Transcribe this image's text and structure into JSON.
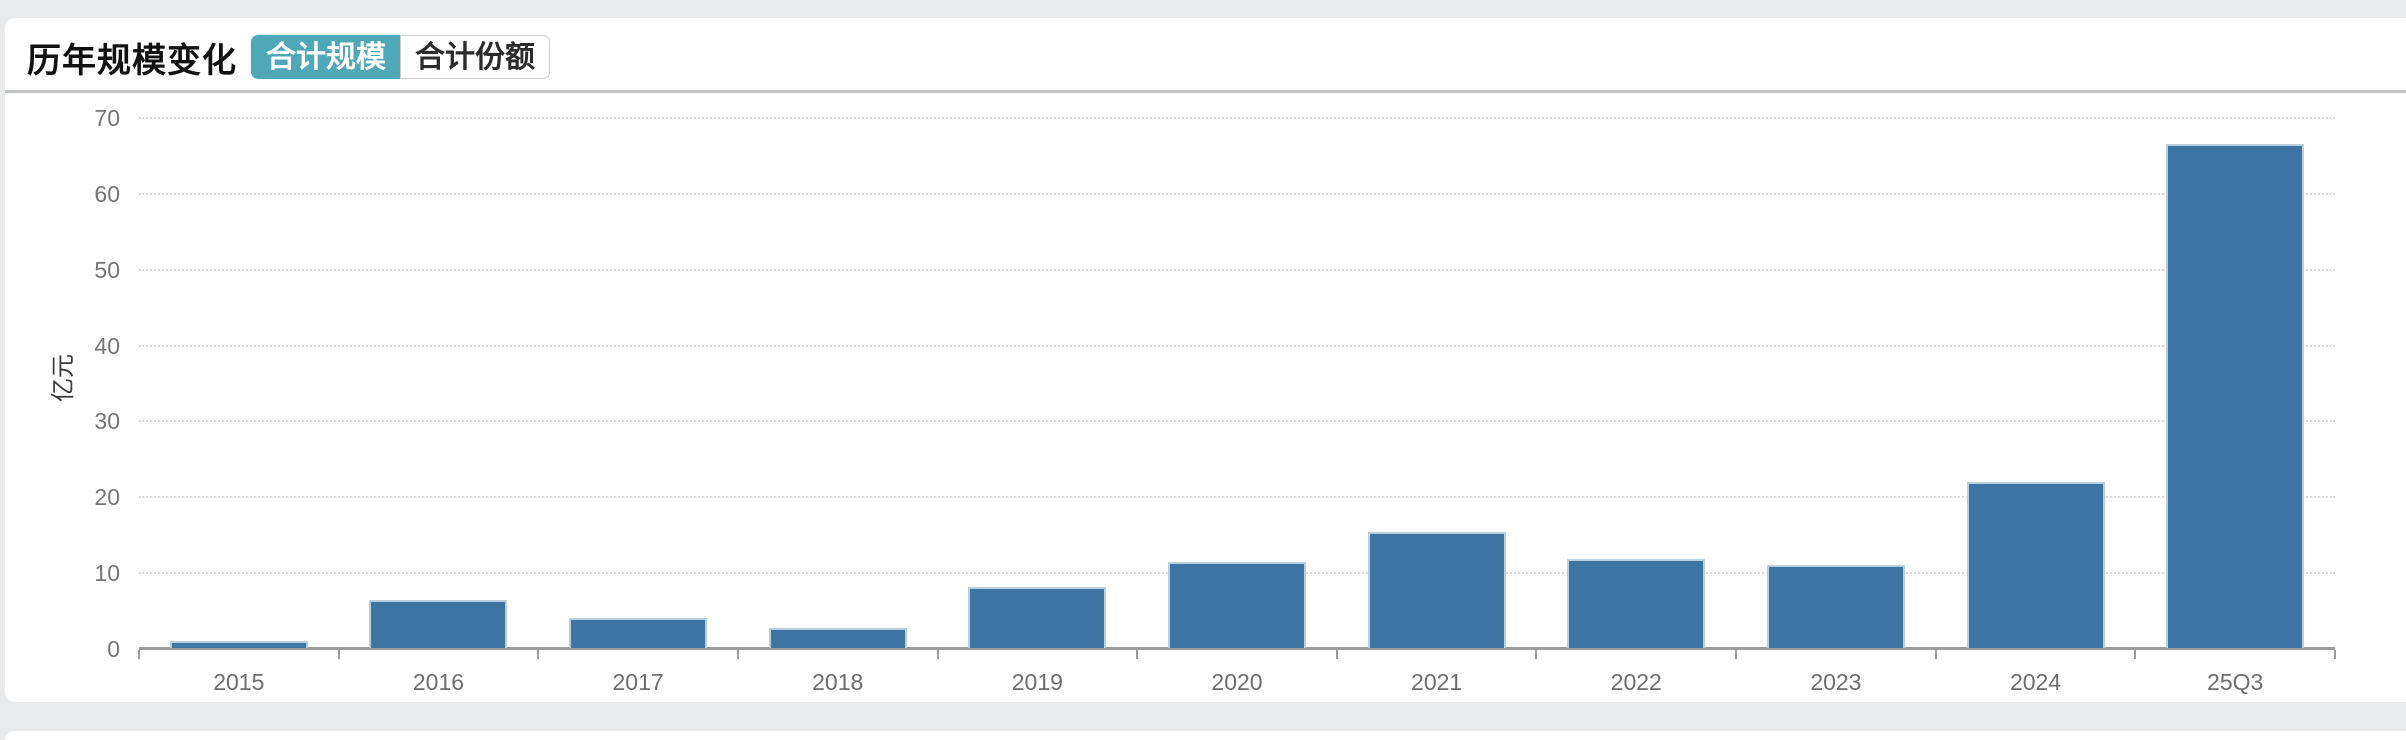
{
  "header": {
    "title": "历年规模变化",
    "tabs": [
      {
        "label": "合计规模",
        "name": "total-scale",
        "active": true
      },
      {
        "label": "合计份额",
        "name": "total-share",
        "active": false
      }
    ]
  },
  "colors": {
    "accent_teal": "#4fa8b8",
    "bar_blue": "#3e74a2",
    "bar_edge": "#b7cfdf",
    "axis_line": "#9a9c9e",
    "grid_dotted": "#d9dadb",
    "tick_label": "#757575",
    "page_background": "#e9eaec"
  },
  "chart_data": {
    "type": "bar",
    "title": "历年规模变化",
    "categories": [
      "2015",
      "2016",
      "2017",
      "2018",
      "2019",
      "2020",
      "2021",
      "2022",
      "2023",
      "2024",
      "25Q3"
    ],
    "values": [
      0.9,
      6.3,
      3.9,
      2.6,
      8.0,
      11.3,
      15.3,
      11.7,
      10.9,
      21.9,
      66.4
    ],
    "ylabel": "亿元",
    "xlabel": "",
    "yticks": [
      0,
      10,
      20,
      30,
      40,
      50,
      60,
      70
    ],
    "ylim": [
      0,
      70
    ],
    "grid": "horizontal-dotted",
    "legend": "none",
    "bar_color": "#3e74a2"
  }
}
